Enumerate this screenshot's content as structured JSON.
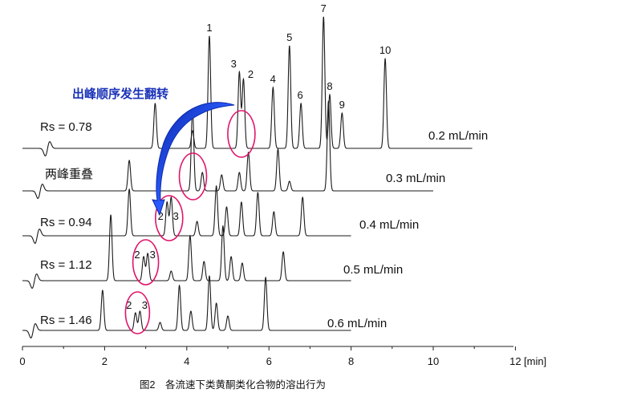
{
  "chart_data": {
    "type": "line",
    "title": "",
    "caption": "图2　各流速下类黄酮类化合物的溶出行为",
    "xlabel": "[min]",
    "ylabel": "",
    "xlim": [
      0,
      12
    ],
    "x_ticks": [
      0,
      2,
      4,
      6,
      8,
      10,
      12
    ],
    "grid": false,
    "annotation": "出峰顺序发生翻转",
    "series": [
      {
        "name": "0.2 mL/min",
        "resolution_label": "Rs = 0.78",
        "end_min": 10.95,
        "injection_min": 0.6,
        "peaks": [
          {
            "t": 3.23,
            "h": 56
          },
          {
            "t": 4.14,
            "h": 22
          },
          {
            "t": 4.55,
            "h": 140,
            "label": "1"
          },
          {
            "t": 5.28,
            "h": 95,
            "label": "3"
          },
          {
            "t": 5.38,
            "h": 86,
            "label": "2"
          },
          {
            "t": 6.1,
            "h": 76,
            "label": "4"
          },
          {
            "t": 6.5,
            "h": 128,
            "label": "5"
          },
          {
            "t": 6.78,
            "h": 56,
            "label": "6"
          },
          {
            "t": 7.33,
            "h": 164,
            "label": "7"
          },
          {
            "t": 7.48,
            "h": 67,
            "label": "8"
          },
          {
            "t": 7.78,
            "h": 44,
            "label": "9"
          },
          {
            "t": 8.83,
            "h": 112,
            "label": "10"
          }
        ]
      },
      {
        "name": "0.3 mL/min",
        "resolution_label": "两峰重叠",
        "end_min": 10.0,
        "injection_min": 0.42,
        "peaks": [
          {
            "t": 2.6,
            "h": 38
          },
          {
            "t": 4.14,
            "h": 102
          },
          {
            "t": 4.38,
            "h": 23
          },
          {
            "t": 4.85,
            "h": 20
          },
          {
            "t": 5.28,
            "h": 23
          },
          {
            "t": 5.5,
            "h": 48
          },
          {
            "t": 6.22,
            "h": 52
          },
          {
            "t": 6.5,
            "h": 12
          },
          {
            "t": 7.45,
            "h": 112
          }
        ]
      },
      {
        "name": "0.4 mL/min",
        "resolution_label": "Rs = 0.94",
        "end_min": 8.0,
        "injection_min": 0.35,
        "peaks": [
          {
            "t": 2.6,
            "h": 58
          },
          {
            "t": 3.52,
            "h": 42,
            "label": "2"
          },
          {
            "t": 3.62,
            "h": 48,
            "label": "3"
          },
          {
            "t": 4.25,
            "h": 18
          },
          {
            "t": 4.72,
            "h": 62
          },
          {
            "t": 4.97,
            "h": 36
          },
          {
            "t": 5.33,
            "h": 42
          },
          {
            "t": 5.73,
            "h": 54
          },
          {
            "t": 6.12,
            "h": 30
          },
          {
            "t": 6.82,
            "h": 48
          }
        ]
      },
      {
        "name": "0.5 mL/min",
        "resolution_label": "Rs = 1.12",
        "end_min": 8.0,
        "injection_min": 0.28,
        "peaks": [
          {
            "t": 2.15,
            "h": 82
          },
          {
            "t": 2.95,
            "h": 30,
            "label": "2"
          },
          {
            "t": 3.05,
            "h": 34,
            "label": "3"
          },
          {
            "t": 3.62,
            "h": 12
          },
          {
            "t": 4.08,
            "h": 56
          },
          {
            "t": 4.42,
            "h": 24
          },
          {
            "t": 4.88,
            "h": 68
          },
          {
            "t": 5.08,
            "h": 30
          },
          {
            "t": 5.35,
            "h": 22
          },
          {
            "t": 6.35,
            "h": 36
          }
        ]
      },
      {
        "name": "0.6 mL/min",
        "resolution_label": "Rs = 1.46",
        "end_min": 8.0,
        "injection_min": 0.25,
        "peaks": [
          {
            "t": 1.95,
            "h": 50
          },
          {
            "t": 2.75,
            "h": 22,
            "label": "2"
          },
          {
            "t": 2.86,
            "h": 24,
            "label": "3"
          },
          {
            "t": 3.35,
            "h": 10
          },
          {
            "t": 3.82,
            "h": 56
          },
          {
            "t": 4.1,
            "h": 24
          },
          {
            "t": 4.55,
            "h": 68
          },
          {
            "t": 4.72,
            "h": 34
          },
          {
            "t": 5.0,
            "h": 18
          },
          {
            "t": 5.92,
            "h": 66
          }
        ]
      }
    ],
    "highlighted_circles": [
      {
        "series": "0.2 mL/min",
        "t": 5.33
      },
      {
        "series": "0.3 mL/min",
        "t": 4.15
      },
      {
        "series": "0.4 mL/min",
        "t": 3.57
      },
      {
        "series": "0.5 mL/min",
        "t": 3.0
      },
      {
        "series": "0.6 mL/min",
        "t": 2.8
      }
    ],
    "colors": {
      "trace": "#1a1a1a",
      "circle": "#e0156b",
      "arrow": "#1b3fcc",
      "annotation": "#1a32b8"
    }
  }
}
